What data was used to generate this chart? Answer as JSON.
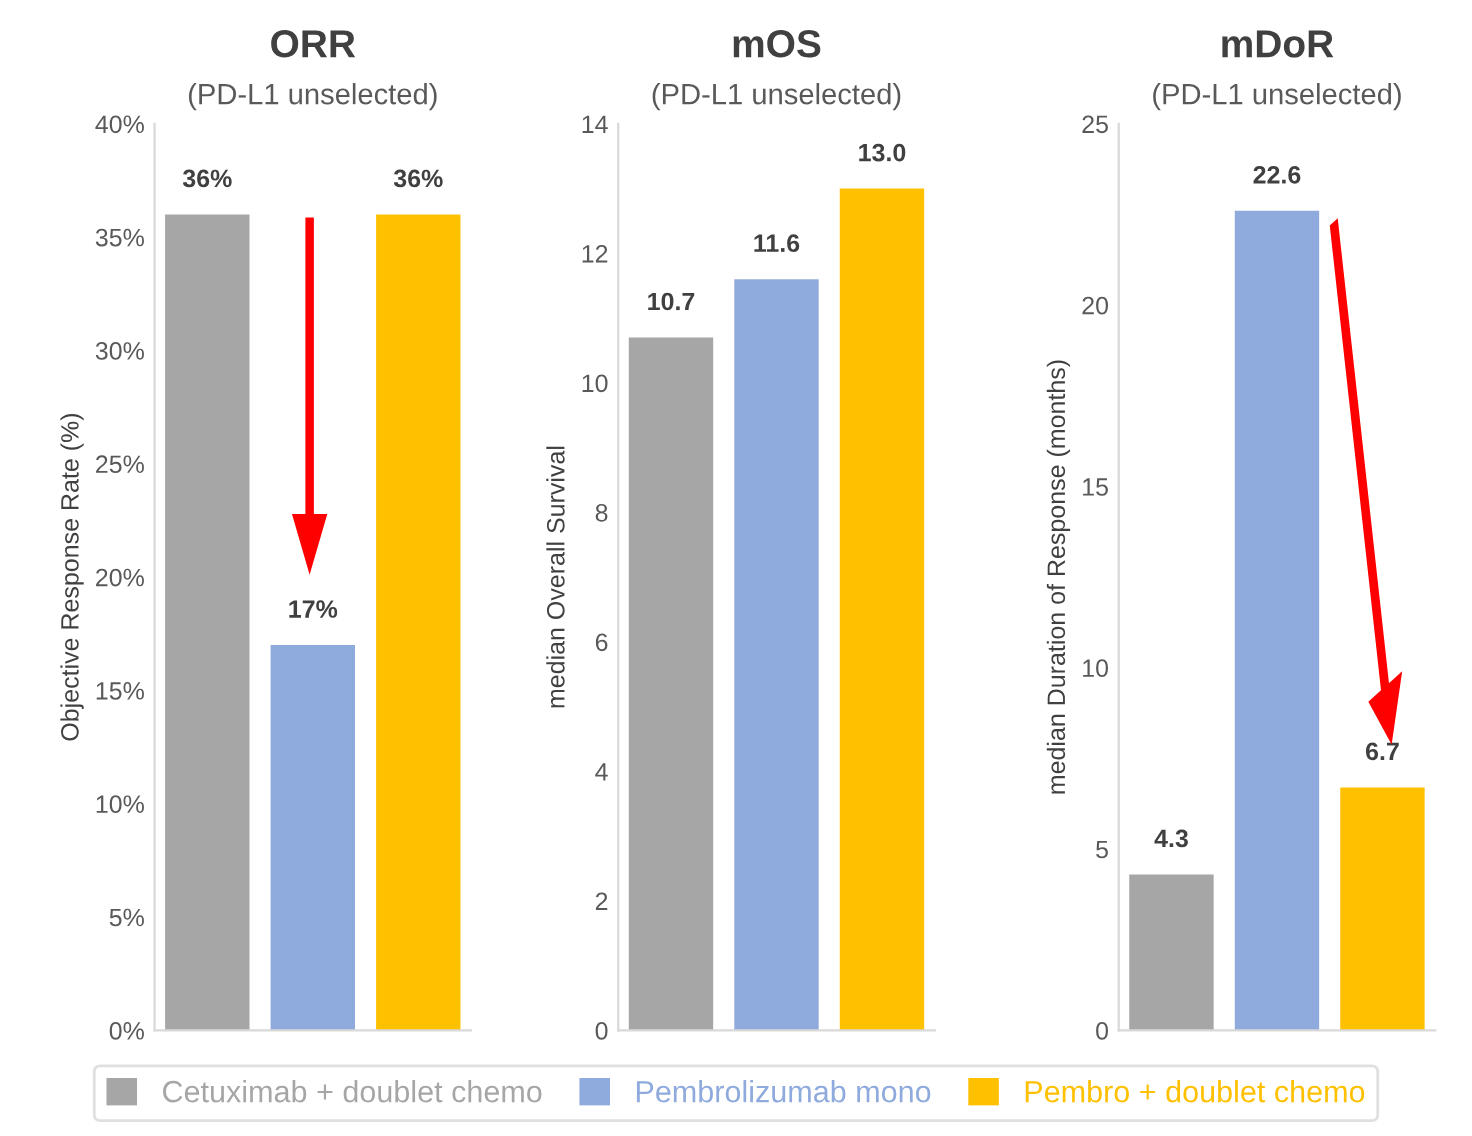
{
  "chart_data": [
    {
      "type": "bar",
      "title": "ORR",
      "subtitle": "(PD-L1 unselected)",
      "ylabel": "Objective Response Rate (%)",
      "categories": [
        null,
        null,
        null
      ],
      "series": [
        {
          "name": "Cetuximab + doublet chemo",
          "color": "#a6a6a6",
          "values": [
            36,
            null,
            null
          ],
          "value_labels": [
            "36%",
            null,
            null
          ]
        },
        {
          "name": "Pembrolizumab mono",
          "color": "#8faadc",
          "values": [
            null,
            17,
            null
          ],
          "value_labels": [
            null,
            "17%",
            null
          ]
        },
        {
          "name": "Pembro + doublet chemo",
          "color": "#ffc000",
          "values": [
            null,
            null,
            36
          ],
          "value_labels": [
            null,
            null,
            "36%"
          ]
        }
      ],
      "ylim": [
        0,
        40
      ],
      "yticks": [
        {
          "value": 0,
          "label": "0%"
        },
        {
          "value": 5,
          "label": "5%"
        },
        {
          "value": 10,
          "label": "10%"
        },
        {
          "value": 15,
          "label": "15%"
        },
        {
          "value": 20,
          "label": "20%"
        },
        {
          "value": 25,
          "label": "25%"
        },
        {
          "value": 30,
          "label": "30%"
        },
        {
          "value": 35,
          "label": "35%"
        },
        {
          "value": 40,
          "label": "40%"
        }
      ],
      "grid": false,
      "legend": "bottom"
    },
    {
      "type": "bar",
      "title": "mOS",
      "subtitle": "(PD-L1 unselected)",
      "ylabel": "median Overall Survival",
      "categories": [
        null,
        null,
        null
      ],
      "values": [
        10.7,
        11.6,
        13.0
      ],
      "colors": [
        "#a6a6a6",
        "#8faadc",
        "#ffc000"
      ],
      "value_labels": [
        "10.7",
        "11.6",
        "13.0"
      ],
      "ylim": [
        0,
        14
      ],
      "yticks": [
        0,
        2,
        4,
        6,
        8,
        10,
        12,
        14
      ],
      "grid": false
    },
    {
      "type": "bar",
      "title": "mDoR",
      "subtitle": "(PD-L1 unselected)",
      "ylabel": "median Duration of Response (months)",
      "categories": [
        null,
        null,
        null
      ],
      "values": [
        4.3,
        22.6,
        6.7
      ],
      "colors": [
        "#a6a6a6",
        "#8faadc",
        "#ffc000"
      ],
      "value_labels": [
        "4.3",
        "22.6",
        "6.7"
      ],
      "ylim": [
        0,
        25
      ],
      "yticks": [
        0,
        5,
        10,
        15,
        20,
        25
      ],
      "grid": false
    }
  ]
}
